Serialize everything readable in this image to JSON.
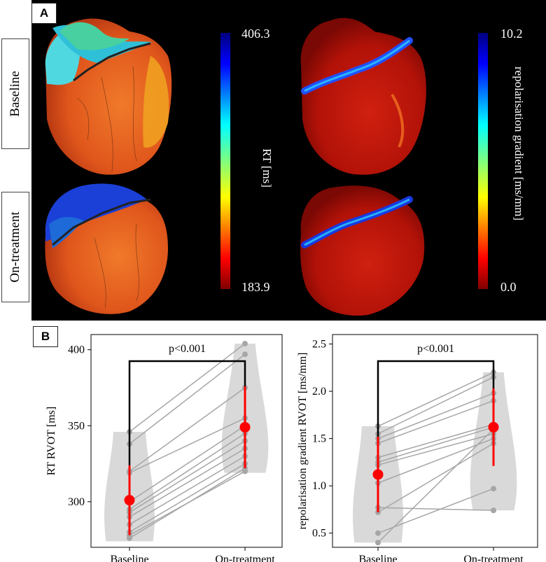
{
  "panel_a": {
    "label": "A",
    "rows": [
      "Baseline",
      "On-treatment"
    ],
    "colorbar_rt": {
      "max": "406.3",
      "min": "183.9",
      "title": "RT [ms]"
    },
    "colorbar_gradient": {
      "max": "10.2",
      "min": "0.0",
      "title": "repolarisation gradient [ms/mm]"
    }
  },
  "panel_b": {
    "label": "B"
  },
  "colors": {
    "violin": "#d9d9d9",
    "points": "#a6a6a6",
    "mean": "#ff0000",
    "bracket": "#000000"
  },
  "chart_data": [
    {
      "type": "scatter",
      "subtype": "paired-violin",
      "ylabel": "RT RVOT [ms]",
      "xlabel": "",
      "categories": [
        "Baseline",
        "On-treatment"
      ],
      "ylim": [
        270,
        410
      ],
      "yticks": [
        300,
        350,
        400
      ],
      "significance": "p<0.001",
      "pairs": [
        [
          346,
          404
        ],
        [
          338,
          397
        ],
        [
          320,
          375
        ],
        [
          319,
          355
        ],
        [
          300,
          350
        ],
        [
          295,
          345
        ],
        [
          293,
          340
        ],
        [
          290,
          335
        ],
        [
          285,
          330
        ],
        [
          280,
          325
        ],
        [
          278,
          320
        ],
        [
          276,
          322
        ]
      ],
      "mean": [
        301,
        349
      ],
      "ci": [
        [
          278,
          324
        ],
        [
          322,
          376
        ]
      ],
      "violin_range": [
        [
          274,
          346
        ],
        [
          319,
          404
        ]
      ]
    },
    {
      "type": "scatter",
      "subtype": "paired-violin",
      "ylabel": "repolarisation gradient RVOT [ms/mm]",
      "xlabel": "",
      "categories": [
        "Baseline",
        "On-treatment"
      ],
      "ylim": [
        0.35,
        2.6
      ],
      "yticks": [
        0.5,
        1.0,
        1.5,
        2.0,
        2.5
      ],
      "significance": "p<0.001",
      "pairs": [
        [
          1.63,
          2.2
        ],
        [
          1.55,
          2.15
        ],
        [
          1.5,
          1.98
        ],
        [
          1.45,
          1.9
        ],
        [
          1.3,
          1.65
        ],
        [
          1.25,
          1.62
        ],
        [
          1.22,
          1.55
        ],
        [
          1.03,
          1.5
        ],
        [
          0.77,
          0.74
        ],
        [
          0.72,
          1.45
        ],
        [
          0.5,
          0.97
        ],
        [
          0.4,
          1.6
        ]
      ],
      "mean": [
        1.12,
        1.62
      ],
      "ci": [
        [
          0.72,
          1.52
        ],
        [
          1.21,
          2.03
        ]
      ],
      "violin_range": [
        [
          0.4,
          1.63
        ],
        [
          0.74,
          2.2
        ]
      ]
    }
  ]
}
